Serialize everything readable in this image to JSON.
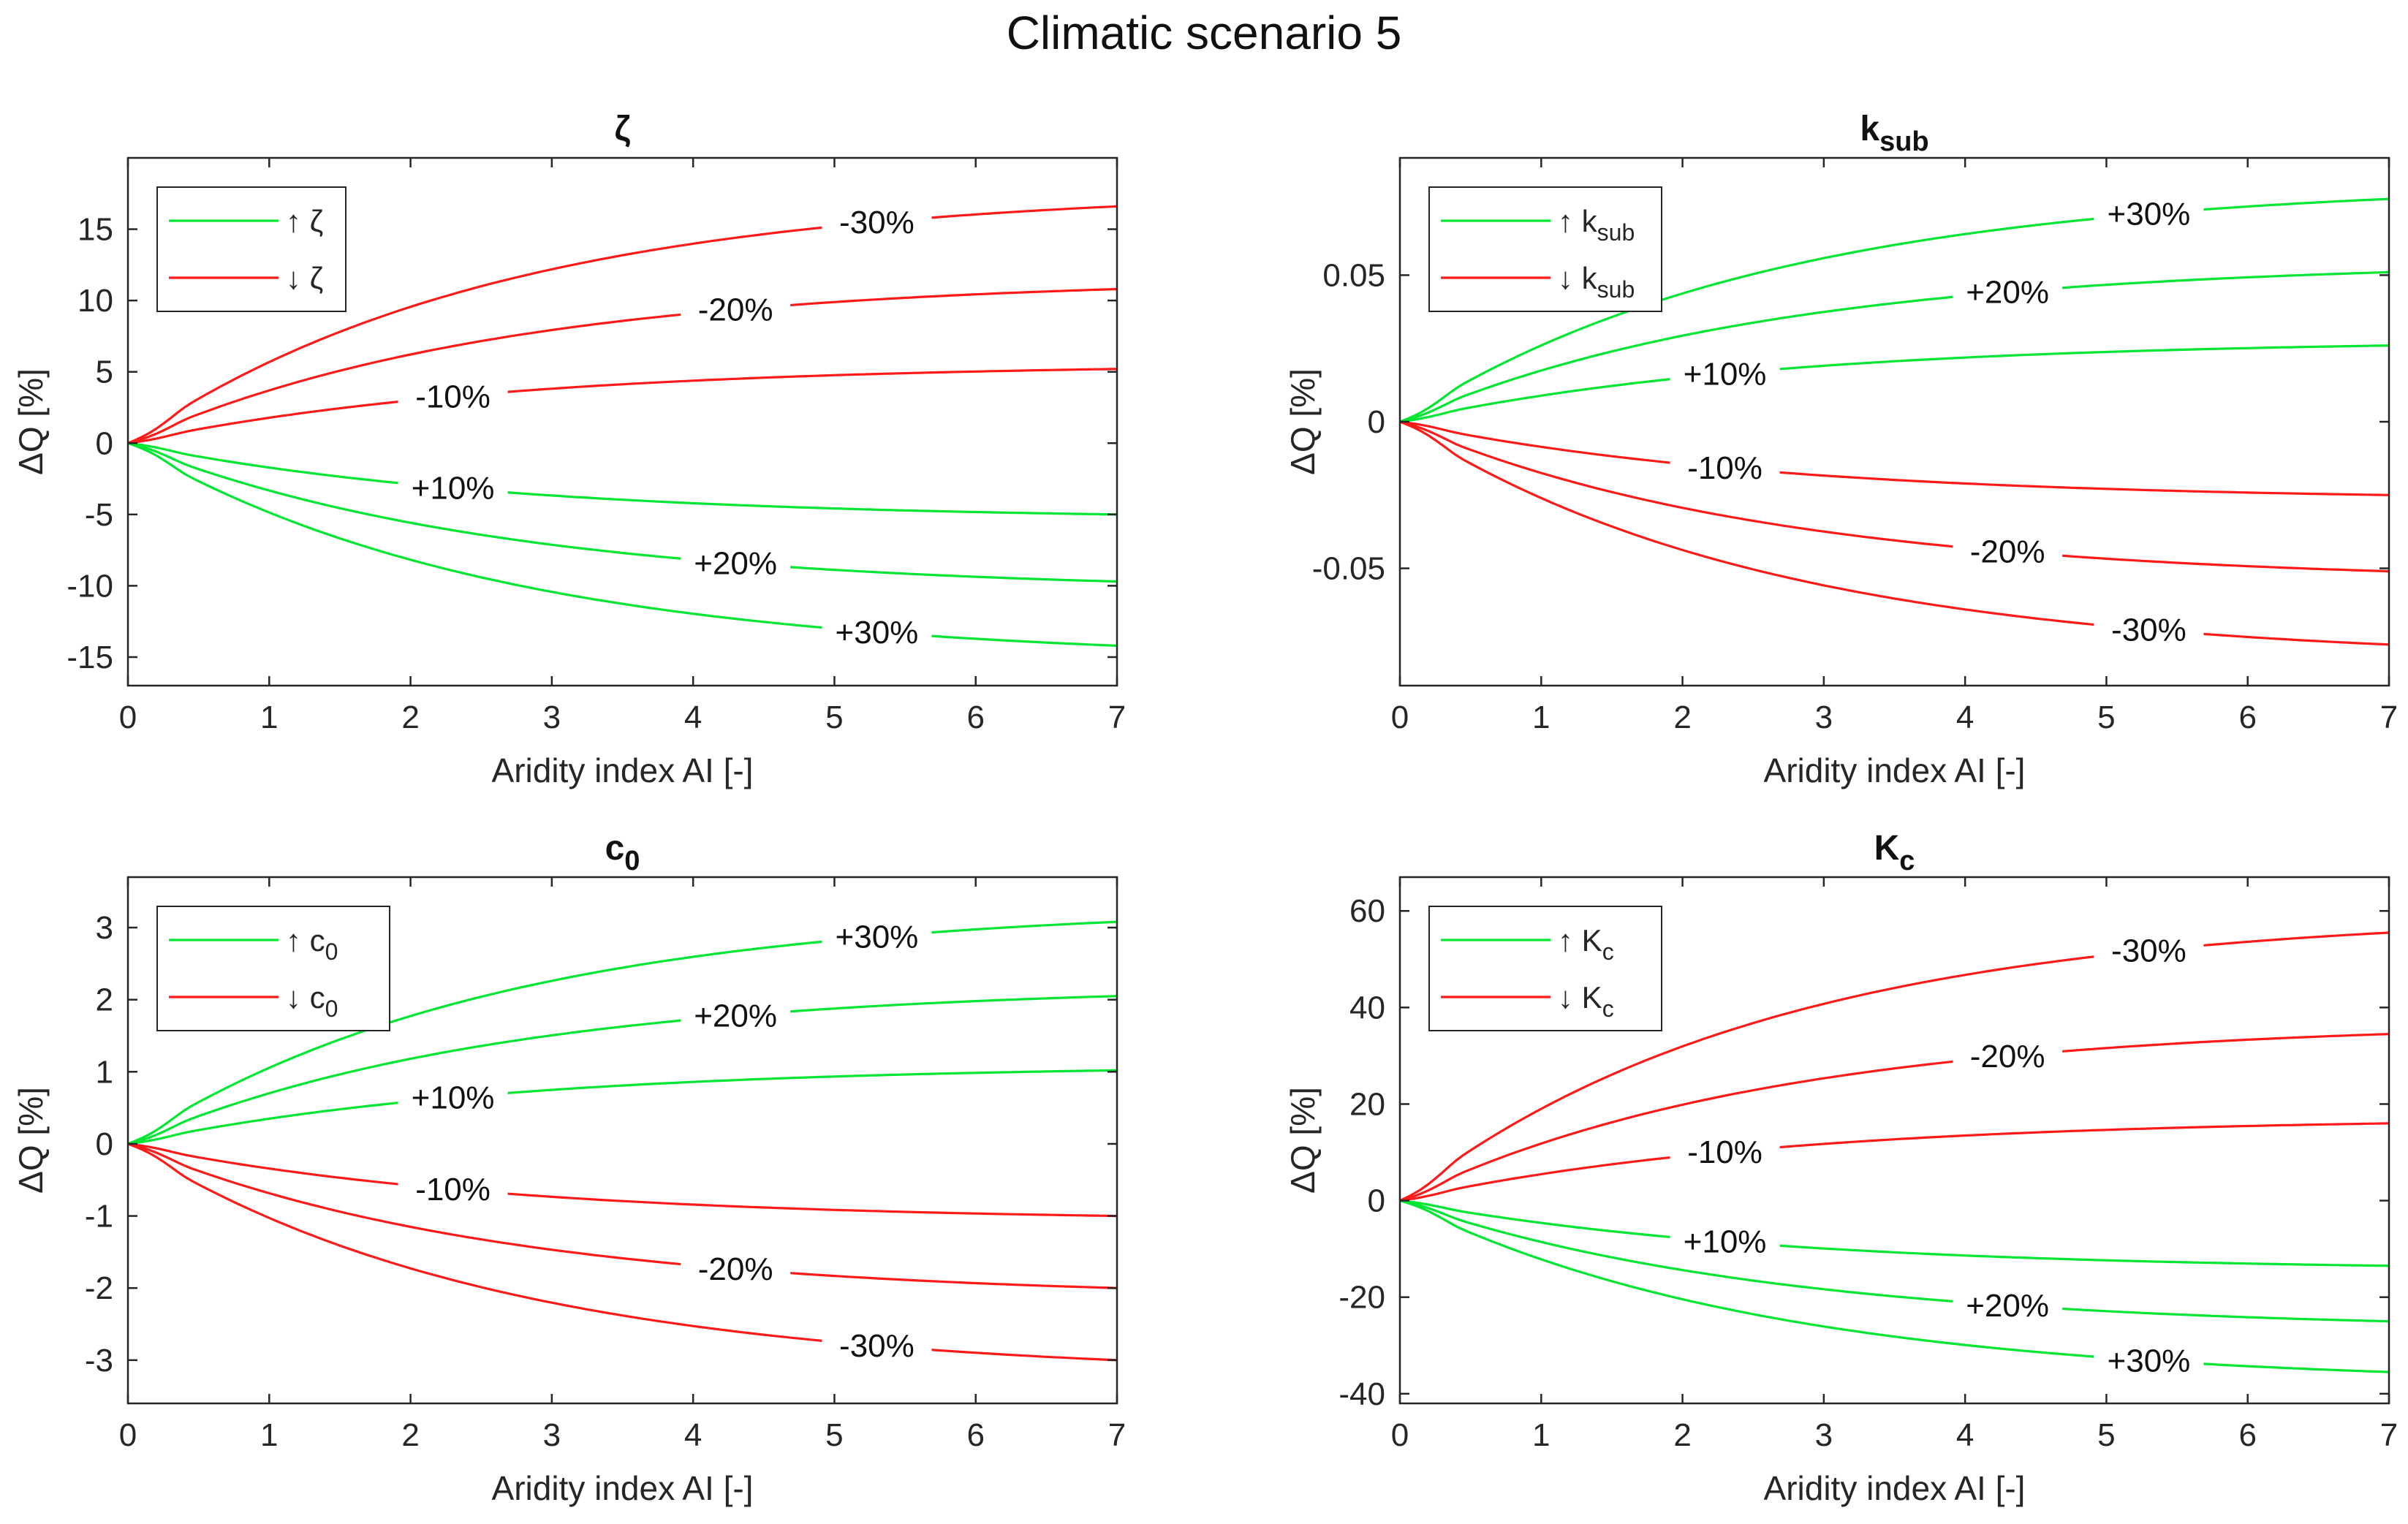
{
  "figure_title": "Climatic scenario 5",
  "colors": {
    "increase": "#00e632",
    "decrease": "#ff1a1a",
    "axis": "#262626"
  },
  "chart_data": [
    {
      "type": "line",
      "title": "ζ",
      "title_sub": "",
      "xlabel": "Aridity index AI [-]",
      "ylabel": "ΔQ [%]",
      "xlim": [
        0,
        7
      ],
      "ylim": [
        -17,
        20
      ],
      "xticks": [
        0,
        1,
        2,
        3,
        4,
        5,
        6,
        7
      ],
      "yticks": [
        -15,
        -10,
        -5,
        0,
        5,
        10,
        15
      ],
      "ytick_labels": [
        "-15",
        "-10",
        "-5",
        "0",
        "5",
        "10",
        "15"
      ],
      "legend": [
        {
          "arrow": "↑",
          "symbol": "ζ",
          "sub": "",
          "color": "#00e632"
        },
        {
          "arrow": "↓",
          "symbol": "ζ",
          "sub": "",
          "color": "#ff1a1a"
        }
      ],
      "series": [
        {
          "name": "-30%",
          "color": "#ff1a1a",
          "final": 16.6,
          "label_x": 5.3
        },
        {
          "name": "-20%",
          "color": "#ff1a1a",
          "final": 10.8,
          "label_x": 4.3
        },
        {
          "name": "-10%",
          "color": "#ff1a1a",
          "final": 5.2,
          "label_x": 2.3
        },
        {
          "name": "+10%",
          "color": "#00e632",
          "final": -5.0,
          "label_x": 2.3
        },
        {
          "name": "+20%",
          "color": "#00e632",
          "final": -9.7,
          "label_x": 4.3
        },
        {
          "name": "+30%",
          "color": "#00e632",
          "final": -14.2,
          "label_x": 5.3
        }
      ]
    },
    {
      "type": "line",
      "title": "k",
      "title_sub": "sub",
      "xlabel": "Aridity index AI [-]",
      "ylabel": "ΔQ [%]",
      "xlim": [
        0,
        7
      ],
      "ylim": [
        -0.09,
        0.09
      ],
      "xticks": [
        0,
        1,
        2,
        3,
        4,
        5,
        6,
        7
      ],
      "yticks": [
        -0.05,
        0,
        0.05
      ],
      "ytick_labels": [
        "-0.05",
        "0",
        "0.05"
      ],
      "legend": [
        {
          "arrow": "↑",
          "symbol": "k",
          "sub": "sub",
          "color": "#00e632"
        },
        {
          "arrow": "↓",
          "symbol": "k",
          "sub": "sub",
          "color": "#ff1a1a"
        }
      ],
      "series": [
        {
          "name": "+30%",
          "color": "#00e632",
          "final": 0.076,
          "label_x": 5.3
        },
        {
          "name": "+20%",
          "color": "#00e632",
          "final": 0.051,
          "label_x": 4.3
        },
        {
          "name": "+10%",
          "color": "#00e632",
          "final": 0.026,
          "label_x": 2.3
        },
        {
          "name": "-10%",
          "color": "#ff1a1a",
          "final": -0.025,
          "label_x": 2.3
        },
        {
          "name": "-20%",
          "color": "#ff1a1a",
          "final": -0.051,
          "label_x": 4.3
        },
        {
          "name": "-30%",
          "color": "#ff1a1a",
          "final": -0.076,
          "label_x": 5.3
        }
      ]
    },
    {
      "type": "line",
      "title": "c",
      "title_sub": "0",
      "xlabel": "Aridity index AI [-]",
      "ylabel": "ΔQ [%]",
      "xlim": [
        0,
        7
      ],
      "ylim": [
        -3.6,
        3.7
      ],
      "xticks": [
        0,
        1,
        2,
        3,
        4,
        5,
        6,
        7
      ],
      "yticks": [
        -3,
        -2,
        -1,
        0,
        1,
        2,
        3
      ],
      "ytick_labels": [
        "-3",
        "-2",
        "-1",
        "0",
        "1",
        "2",
        "3"
      ],
      "legend": [
        {
          "arrow": "↑",
          "symbol": "c",
          "sub": "0",
          "color": "#00e632"
        },
        {
          "arrow": "↓",
          "symbol": "c",
          "sub": "0",
          "color": "#ff1a1a"
        }
      ],
      "series": [
        {
          "name": "+30%",
          "color": "#00e632",
          "final": 3.08,
          "label_x": 5.3
        },
        {
          "name": "+20%",
          "color": "#00e632",
          "final": 2.05,
          "label_x": 4.3
        },
        {
          "name": "+10%",
          "color": "#00e632",
          "final": 1.02,
          "label_x": 2.3
        },
        {
          "name": "-10%",
          "color": "#ff1a1a",
          "final": -1.0,
          "label_x": 2.3
        },
        {
          "name": "-20%",
          "color": "#ff1a1a",
          "final": -2.0,
          "label_x": 4.3
        },
        {
          "name": "-30%",
          "color": "#ff1a1a",
          "final": -3.0,
          "label_x": 5.3
        }
      ]
    },
    {
      "type": "line",
      "title": "K",
      "title_sub": "c",
      "xlabel": "Aridity index AI [-]",
      "ylabel": "ΔQ [%]",
      "xlim": [
        0,
        7
      ],
      "ylim": [
        -42,
        67
      ],
      "xticks": [
        0,
        1,
        2,
        3,
        4,
        5,
        6,
        7
      ],
      "yticks": [
        -40,
        -20,
        0,
        20,
        40,
        60
      ],
      "ytick_labels": [
        "-40",
        "-20",
        "0",
        "20",
        "40",
        "60"
      ],
      "legend": [
        {
          "arrow": "↑",
          "symbol": "K",
          "sub": "c",
          "color": "#00e632"
        },
        {
          "arrow": "↓",
          "symbol": "K",
          "sub": "c",
          "color": "#ff1a1a"
        }
      ],
      "series": [
        {
          "name": "-30%",
          "color": "#ff1a1a",
          "final": 55.5,
          "label_x": 5.3
        },
        {
          "name": "-20%",
          "color": "#ff1a1a",
          "final": 34.5,
          "label_x": 4.3
        },
        {
          "name": "-10%",
          "color": "#ff1a1a",
          "final": 16.0,
          "label_x": 2.3
        },
        {
          "name": "+10%",
          "color": "#00e632",
          "final": -13.5,
          "label_x": 2.3
        },
        {
          "name": "+20%",
          "color": "#00e632",
          "final": -25.0,
          "label_x": 4.3
        },
        {
          "name": "+30%",
          "color": "#00e632",
          "final": -35.5,
          "label_x": 5.3
        }
      ]
    }
  ]
}
